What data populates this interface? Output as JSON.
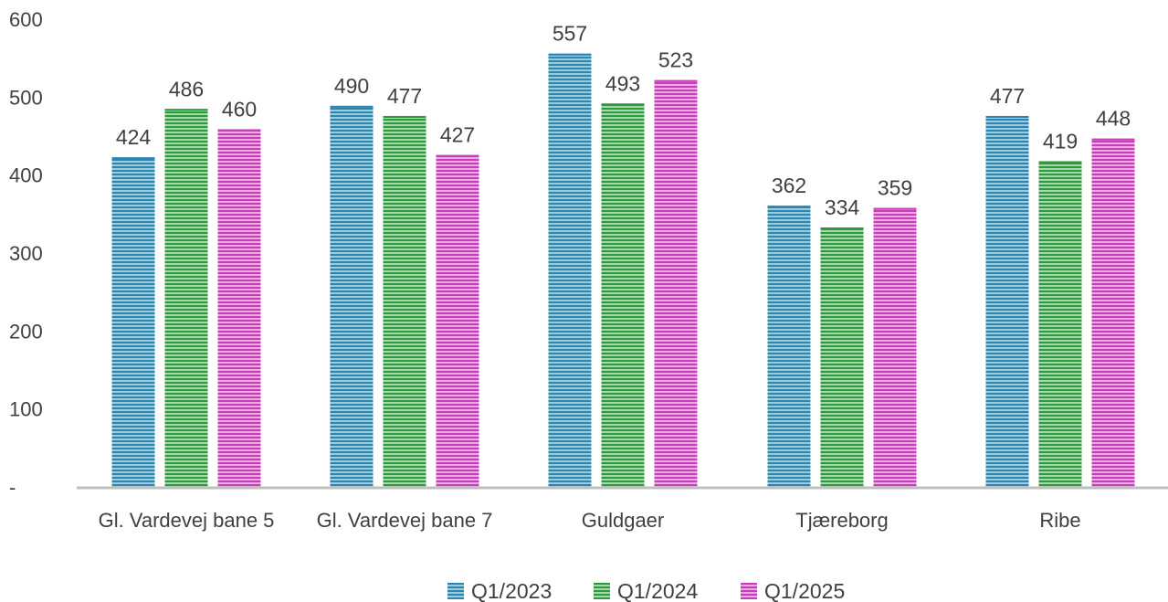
{
  "chart_data": {
    "type": "bar",
    "categories": [
      "Gl. Vardevej bane 5",
      "Gl. Vardevej bane 7",
      "Guldgaer",
      "Tjæreborg",
      "Ribe"
    ],
    "series": [
      {
        "name": "Q1/2023",
        "values": [
          424,
          490,
          557,
          362,
          477
        ],
        "color": "#2E86B0"
      },
      {
        "name": "Q1/2024",
        "values": [
          486,
          477,
          493,
          334,
          419
        ],
        "color": "#2E9A3E"
      },
      {
        "name": "Q1/2025",
        "values": [
          460,
          427,
          523,
          359,
          448
        ],
        "color": "#C43FB8"
      }
    ],
    "data_labels": [
      [
        "424",
        "486",
        "460"
      ],
      [
        "490",
        "477",
        "427"
      ],
      [
        "557",
        "493",
        "523"
      ],
      [
        "362",
        "334",
        "359"
      ],
      [
        "477",
        "419",
        "448"
      ]
    ],
    "yticks": [
      "-",
      "100",
      "200",
      "300",
      "400",
      "500",
      "600"
    ],
    "ylim": [
      0,
      600
    ],
    "grid": false,
    "legend_position": "bottom",
    "title": "",
    "xlabel": "",
    "ylabel": ""
  }
}
